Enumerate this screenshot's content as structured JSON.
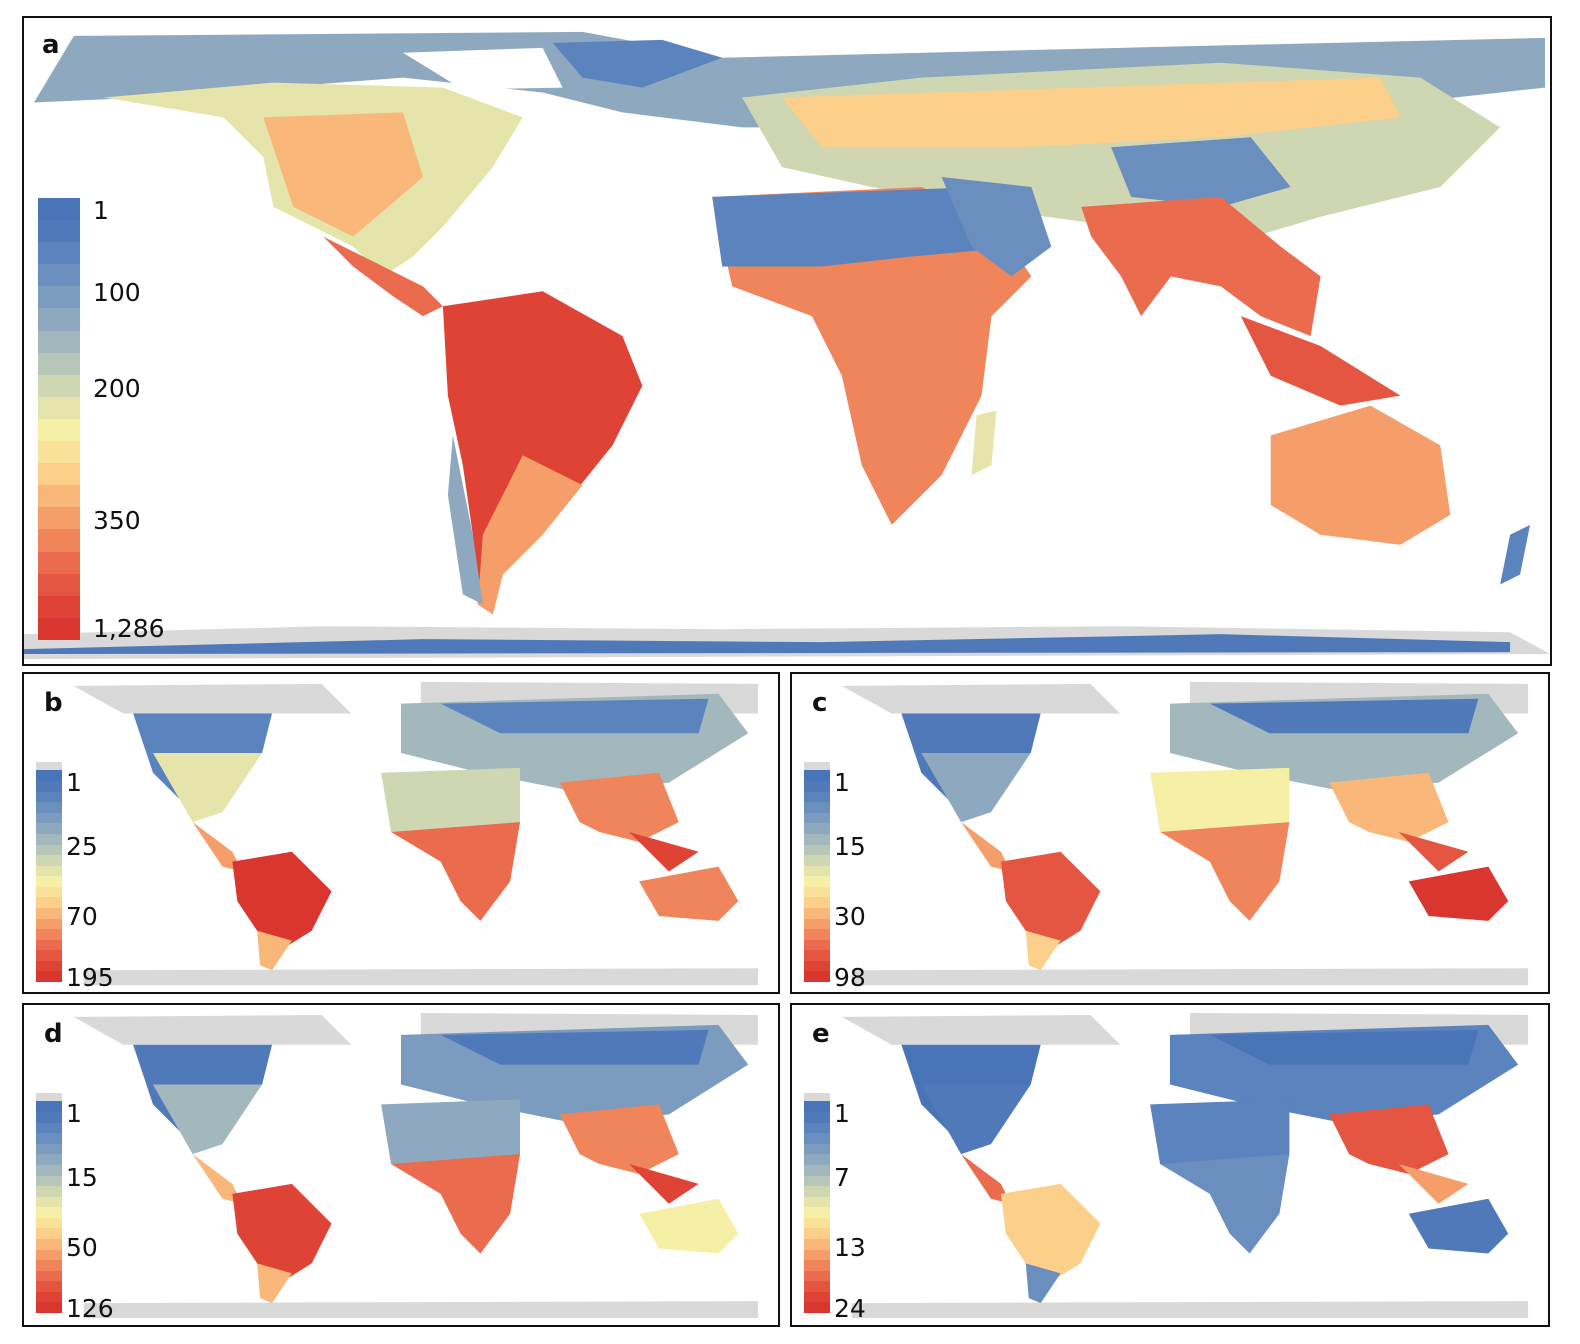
{
  "figure": {
    "panels": [
      {
        "id": "a",
        "label": "a",
        "legend_ticks": [
          "1",
          "100",
          "200",
          "350",
          "1,286"
        ],
        "min": 1,
        "max": 1286,
        "nodata_swatch": false
      },
      {
        "id": "b",
        "label": "b",
        "legend_ticks": [
          "1",
          "25",
          "70",
          "195"
        ],
        "min": 1,
        "max": 195,
        "nodata_swatch": true
      },
      {
        "id": "c",
        "label": "c",
        "legend_ticks": [
          "1",
          "15",
          "30",
          "98"
        ],
        "min": 1,
        "max": 98,
        "nodata_swatch": true
      },
      {
        "id": "d",
        "label": "d",
        "legend_ticks": [
          "1",
          "15",
          "50",
          "126"
        ],
        "min": 1,
        "max": 126,
        "nodata_swatch": true
      },
      {
        "id": "e",
        "label": "e",
        "legend_ticks": [
          "1",
          "7",
          "13",
          "24"
        ],
        "min": 1,
        "max": 24,
        "nodata_swatch": true
      }
    ],
    "colormap": [
      "#4a74b8",
      "#5079ba",
      "#5b83bd",
      "#6a8fbf",
      "#7b9bbf",
      "#8ea9bf",
      "#a3b8bd",
      "#b8c6b9",
      "#cfd6b2",
      "#e4e4ab",
      "#f6f0a6",
      "#fbe29b",
      "#fccf8a",
      "#f9b77a",
      "#f59e6a",
      "#f0845b",
      "#ea6b4d",
      "#e45641",
      "#de4336",
      "#d8362e"
    ],
    "nodata_color": "#d9d9d9",
    "background": "#ffffff",
    "border_color": "#111111"
  }
}
